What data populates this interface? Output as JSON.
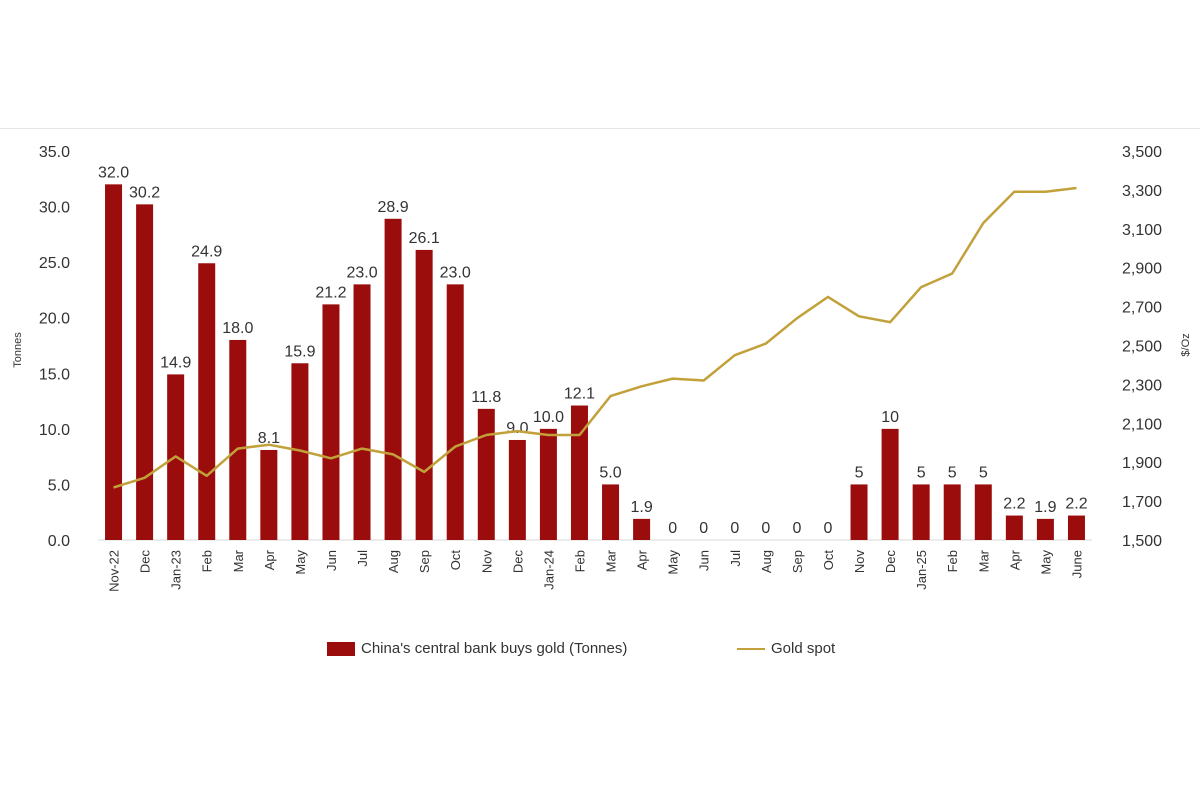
{
  "chart_data": {
    "type": "bar",
    "title": "",
    "categories": [
      "Nov-22",
      "Dec",
      "Jan-23",
      "Feb",
      "Mar",
      "Apr",
      "May",
      "Jun",
      "Jul",
      "Aug",
      "Sep",
      "Oct",
      "Nov",
      "Dec",
      "Jan-24",
      "Feb",
      "Mar",
      "Apr",
      "May",
      "Jun",
      "Jul",
      "Aug",
      "Sep",
      "Oct",
      "Nov",
      "Dec",
      "Jan-25",
      "Feb",
      "Mar",
      "Apr",
      "May",
      "June"
    ],
    "left_axis": {
      "label": "Tonnes",
      "min": 0,
      "max": 35,
      "ticks": [
        "0.0",
        "5.0",
        "10.0",
        "15.0",
        "20.0",
        "25.0",
        "30.0",
        "35.0"
      ]
    },
    "right_axis": {
      "label": "$/Oz",
      "min": 1500,
      "max": 3500,
      "ticks": [
        "1,500",
        "1,700",
        "1,900",
        "2,100",
        "2,300",
        "2,500",
        "2,700",
        "2,900",
        "3,100",
        "3,300",
        "3,500"
      ]
    },
    "series": [
      {
        "name": "China's central bank buys gold (Tonnes)",
        "type": "bar",
        "axis": "left",
        "color": "#9b0d0d",
        "values": [
          32.0,
          30.2,
          14.9,
          24.9,
          18.0,
          8.1,
          15.9,
          21.2,
          23.0,
          28.9,
          26.1,
          23.0,
          11.8,
          9.0,
          10.0,
          12.1,
          5.0,
          1.9,
          0,
          0,
          0,
          0,
          0,
          0,
          5,
          10,
          5,
          5,
          5,
          2.2,
          1.9,
          2.2
        ],
        "labels": [
          "32.0",
          "30.2",
          "14.9",
          "24.9",
          "18.0",
          "8.1",
          "15.9",
          "21.2",
          "23.0",
          "28.9",
          "26.1",
          "23.0",
          "11.8",
          "9.0",
          "10.0",
          "12.1",
          "5.0",
          "1.9",
          "0",
          "0",
          "0",
          "0",
          "0",
          "0",
          "5",
          "10",
          "5",
          "5",
          "5",
          "2.2",
          "1.9",
          "2.2"
        ]
      },
      {
        "name": "Gold spot",
        "type": "line",
        "axis": "right",
        "color": "#c2a03a",
        "values": [
          1770,
          1820,
          1930,
          1830,
          1970,
          1990,
          1960,
          1920,
          1970,
          1940,
          1850,
          1980,
          2040,
          2060,
          2040,
          2040,
          2240,
          2290,
          2330,
          2320,
          2450,
          2510,
          2640,
          2750,
          2650,
          2620,
          2800,
          2870,
          3130,
          3290,
          3290,
          3310
        ]
      }
    ],
    "legend": {
      "placement": "bottom"
    },
    "grid": false
  }
}
